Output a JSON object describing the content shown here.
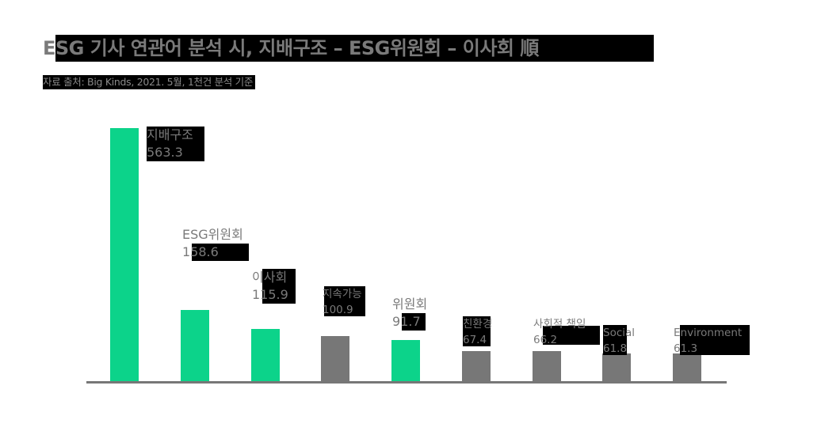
{
  "header": {
    "title": "ESG 기사 연관어 분석 시, 지배구조 – ESG위원회 – 이사회 順",
    "subtitle": "자료 출처: Big Kinds, 2021. 5월, 1천건 분석 기준"
  },
  "colors": {
    "highlight": "#0cd38a",
    "neutral": "#777777",
    "axis": "#777777",
    "label_text": "#7a7a7a",
    "label_bg": "#000000"
  },
  "chart_data": {
    "type": "bar",
    "title": "ESG 기사 연관어 분석 시, 지배구조 – ESG위원회 – 이사회 順",
    "subtitle": "자료 출처: Big Kinds, 2021. 5월, 1천건 분석 기준",
    "xlabel": "",
    "ylabel": "",
    "grid": false,
    "legend": null,
    "categories": [
      "지배구조",
      "ESG위원회",
      "이사회",
      "지속가능",
      "위원회",
      "친환경",
      "사회적 책임",
      "Social",
      "Environment"
    ],
    "values": [
      563.3,
      158.6,
      115.9,
      100.9,
      91.7,
      67.4,
      66.2,
      61.8,
      61.3
    ],
    "value_labels": [
      "563.3",
      "158.6",
      "115.9",
      "100.9",
      "91.7",
      "67.4",
      "66.2",
      "61.8",
      "61.3"
    ],
    "highlighted": [
      true,
      true,
      true,
      false,
      true,
      false,
      false,
      false,
      false
    ],
    "bar_colors": [
      "#0cd38a",
      "#0cd38a",
      "#0cd38a",
      "#777777",
      "#0cd38a",
      "#777777",
      "#777777",
      "#777777",
      "#777777"
    ]
  }
}
